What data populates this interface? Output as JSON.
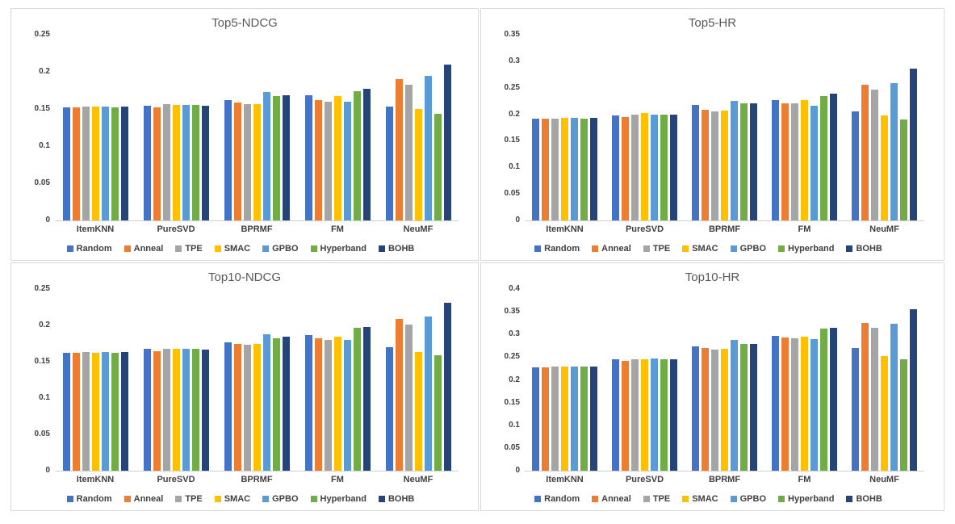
{
  "page": {
    "background": "#ffffff"
  },
  "palette": [
    {
      "name": "Random",
      "color": "#4472C4"
    },
    {
      "name": "Anneal",
      "color": "#ED7D31"
    },
    {
      "name": "TPE",
      "color": "#A5A5A5"
    },
    {
      "name": "SMAC",
      "color": "#FFC000"
    },
    {
      "name": "GPBO",
      "color": "#5B9BD5"
    },
    {
      "name": "Hyperband",
      "color": "#70AD47"
    },
    {
      "name": "BOHB",
      "color": "#264478"
    }
  ],
  "chart_data": [
    {
      "type": "bar",
      "title": "Top5-NDCG",
      "categories": [
        "ItemKNN",
        "PureSVD",
        "BPRMF",
        "FM",
        "NeuMF"
      ],
      "ylim": [
        0,
        0.25
      ],
      "grid": false,
      "legend_position": "bottom",
      "yticks": [
        {
          "label": "0",
          "value": 0
        },
        {
          "label": "0.05",
          "value": 0.05
        },
        {
          "label": "0.1",
          "value": 0.1
        },
        {
          "label": "0.15",
          "value": 0.15
        },
        {
          "label": "0.2",
          "value": 0.2
        },
        {
          "label": "0.25",
          "value": 0.25
        }
      ],
      "series": [
        {
          "name": "Random",
          "values": [
            0.152,
            0.154,
            0.162,
            0.168,
            0.153
          ]
        },
        {
          "name": "Anneal",
          "values": [
            0.152,
            0.152,
            0.159,
            0.162,
            0.19
          ]
        },
        {
          "name": "TPE",
          "values": [
            0.153,
            0.156,
            0.156,
            0.16,
            0.183
          ]
        },
        {
          "name": "SMAC",
          "values": [
            0.153,
            0.155,
            0.157,
            0.167,
            0.15
          ]
        },
        {
          "name": "GPBO",
          "values": [
            0.153,
            0.155,
            0.173,
            0.16,
            0.195
          ]
        },
        {
          "name": "Hyperband",
          "values": [
            0.152,
            0.155,
            0.167,
            0.174,
            0.144
          ]
        },
        {
          "name": "BOHB",
          "values": [
            0.153,
            0.154,
            0.168,
            0.177,
            0.21
          ]
        }
      ]
    },
    {
      "type": "bar",
      "title": "Top5-HR",
      "categories": [
        "ItemKNN",
        "PureSVD",
        "BPRMF",
        "FM",
        "NeuMF"
      ],
      "ylim": [
        0,
        0.35
      ],
      "grid": false,
      "legend_position": "bottom",
      "yticks": [
        {
          "label": "0",
          "value": 0
        },
        {
          "label": "0.05",
          "value": 0.05
        },
        {
          "label": "0.1",
          "value": 0.1
        },
        {
          "label": "0.15",
          "value": 0.15
        },
        {
          "label": "0.2",
          "value": 0.2
        },
        {
          "label": "0.25",
          "value": 0.25
        },
        {
          "label": "0.3",
          "value": 0.3
        },
        {
          "label": "0.35",
          "value": 0.35
        }
      ],
      "series": [
        {
          "name": "Random",
          "values": [
            0.192,
            0.198,
            0.217,
            0.227,
            0.206
          ]
        },
        {
          "name": "Anneal",
          "values": [
            0.192,
            0.195,
            0.208,
            0.22,
            0.256
          ]
        },
        {
          "name": "TPE",
          "values": [
            0.192,
            0.2,
            0.205,
            0.22,
            0.246
          ]
        },
        {
          "name": "SMAC",
          "values": [
            0.194,
            0.202,
            0.207,
            0.227,
            0.198
          ]
        },
        {
          "name": "GPBO",
          "values": [
            0.194,
            0.2,
            0.225,
            0.216,
            0.259
          ]
        },
        {
          "name": "Hyperband",
          "values": [
            0.192,
            0.2,
            0.22,
            0.235,
            0.19
          ]
        },
        {
          "name": "BOHB",
          "values": [
            0.194,
            0.2,
            0.22,
            0.239,
            0.286
          ]
        }
      ]
    },
    {
      "type": "bar",
      "title": "Top10-NDCG",
      "categories": [
        "ItemKNN",
        "PureSVD",
        "BPRMF",
        "FM",
        "NeuMF"
      ],
      "ylim": [
        0,
        0.25
      ],
      "grid": false,
      "legend_position": "bottom",
      "yticks": [
        {
          "label": "0",
          "value": 0
        },
        {
          "label": "0.05",
          "value": 0.05
        },
        {
          "label": "0.1",
          "value": 0.1
        },
        {
          "label": "0.15",
          "value": 0.15
        },
        {
          "label": "0.2",
          "value": 0.2
        },
        {
          "label": "0.25",
          "value": 0.25
        }
      ],
      "series": [
        {
          "name": "Random",
          "values": [
            0.162,
            0.168,
            0.177,
            0.187,
            0.17
          ]
        },
        {
          "name": "Anneal",
          "values": [
            0.162,
            0.164,
            0.174,
            0.182,
            0.209
          ]
        },
        {
          "name": "TPE",
          "values": [
            0.163,
            0.168,
            0.173,
            0.18,
            0.201
          ]
        },
        {
          "name": "SMAC",
          "values": [
            0.162,
            0.168,
            0.174,
            0.185,
            0.163
          ]
        },
        {
          "name": "GPBO",
          "values": [
            0.163,
            0.168,
            0.188,
            0.18,
            0.212
          ]
        },
        {
          "name": "Hyperband",
          "values": [
            0.162,
            0.168,
            0.182,
            0.197,
            0.159
          ]
        },
        {
          "name": "BOHB",
          "values": [
            0.163,
            0.167,
            0.184,
            0.198,
            0.231
          ]
        }
      ]
    },
    {
      "type": "bar",
      "title": "Top10-HR",
      "categories": [
        "ItemKNN",
        "PureSVD",
        "BPRMF",
        "FM",
        "NeuMF"
      ],
      "ylim": [
        0,
        0.4
      ],
      "grid": false,
      "legend_position": "bottom",
      "yticks": [
        {
          "label": "0",
          "value": 0
        },
        {
          "label": "0.05",
          "value": 0.05
        },
        {
          "label": "0.1",
          "value": 0.1
        },
        {
          "label": "0.15",
          "value": 0.15
        },
        {
          "label": "0.2",
          "value": 0.2
        },
        {
          "label": "0.25",
          "value": 0.25
        },
        {
          "label": "0.3",
          "value": 0.3
        },
        {
          "label": "0.35",
          "value": 0.35
        },
        {
          "label": "0.4",
          "value": 0.4
        }
      ],
      "series": [
        {
          "name": "Random",
          "values": [
            0.227,
            0.246,
            0.273,
            0.297,
            0.27
          ]
        },
        {
          "name": "Anneal",
          "values": [
            0.227,
            0.242,
            0.271,
            0.294,
            0.326
          ]
        },
        {
          "name": "TPE",
          "values": [
            0.229,
            0.246,
            0.267,
            0.291,
            0.315
          ]
        },
        {
          "name": "SMAC",
          "values": [
            0.229,
            0.246,
            0.269,
            0.296,
            0.252
          ]
        },
        {
          "name": "GPBO",
          "values": [
            0.229,
            0.248,
            0.288,
            0.29,
            0.324
          ]
        },
        {
          "name": "Hyperband",
          "values": [
            0.229,
            0.246,
            0.279,
            0.313,
            0.245
          ]
        },
        {
          "name": "BOHB",
          "values": [
            0.229,
            0.246,
            0.279,
            0.315,
            0.355
          ]
        }
      ]
    }
  ]
}
